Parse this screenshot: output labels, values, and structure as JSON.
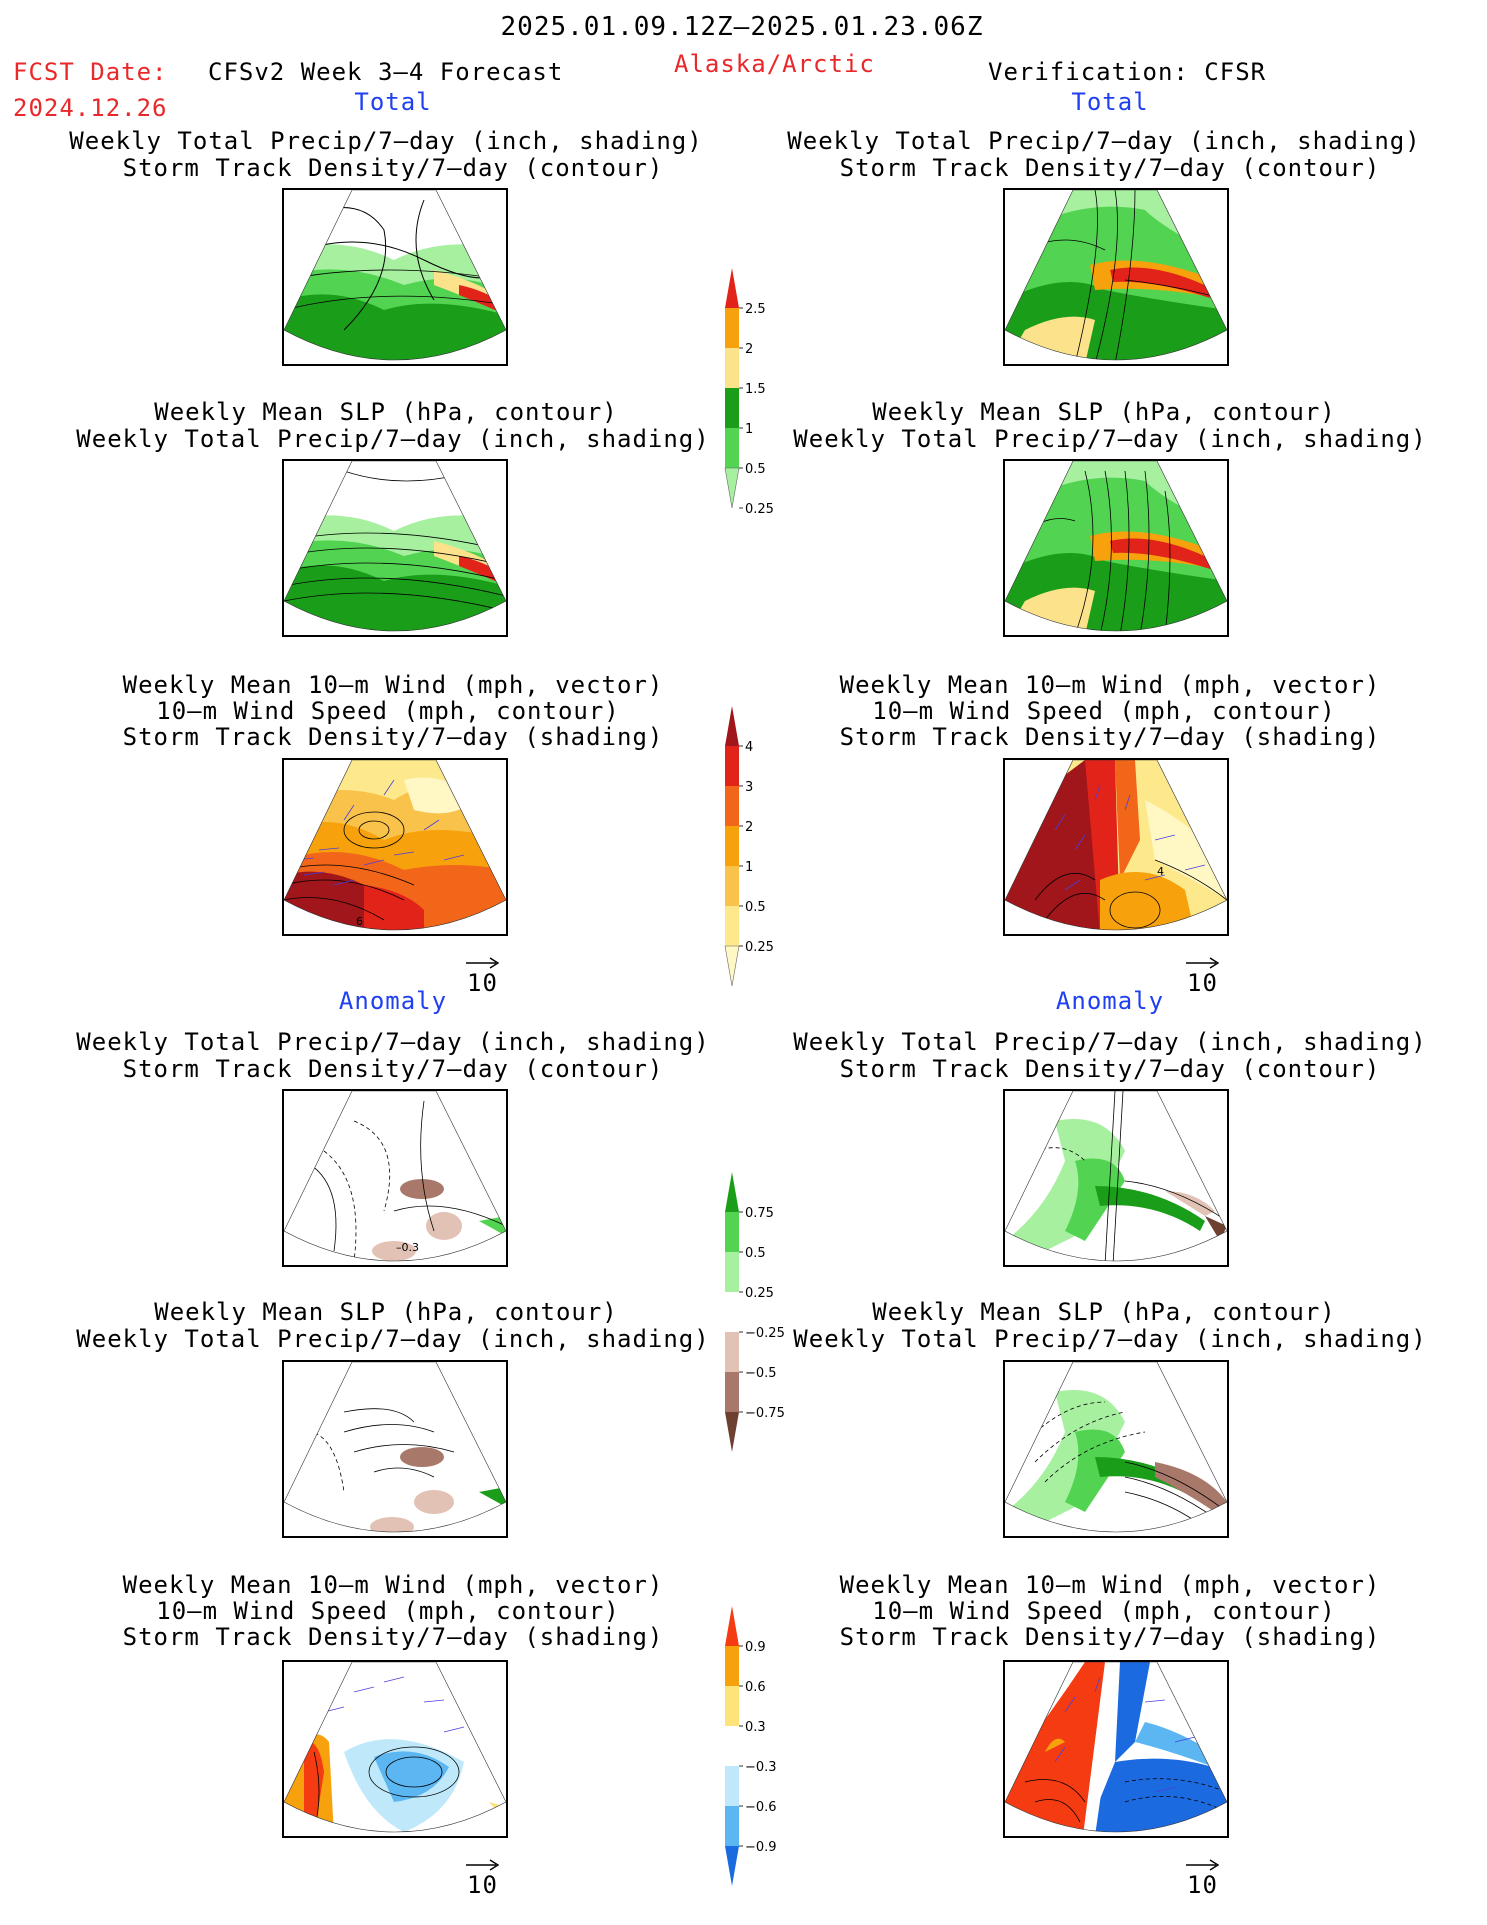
{
  "header": {
    "period": "2025.01.09.12Z–2025.01.23.06Z",
    "fcst_label": "FCST Date:",
    "fcst_date": "2024.12.26",
    "model": "CFSv2 Week 3–4 Forecast",
    "region": "Alaska/Arctic",
    "verification": "Verification: CFSR"
  },
  "sections": {
    "total": "Total",
    "anomaly": "Anomaly"
  },
  "titles": {
    "precip_std": [
      "Weekly Total Precip/7–day (inch, shading)",
      "Storm Track Density/7–day (contour)"
    ],
    "slp_precip": [
      "Weekly Mean SLP (hPa, contour)",
      "Weekly Total Precip/7–day (inch, shading)"
    ],
    "wind": [
      "Weekly Mean 10–m Wind (mph, vector)",
      "10–m Wind Speed (mph, contour)",
      "Storm Track Density/7–day (shading)"
    ]
  },
  "vector_scale": "10",
  "map_labels": {
    "total_wind_left": "6",
    "anom_precip_left": "–0.3",
    "total_wind_right": "4"
  },
  "colorbars": {
    "precip_total": {
      "labels": [
        "2.5",
        "2",
        "1.5",
        "1",
        "0.5",
        "0.25"
      ],
      "colors": [
        "#e2231a",
        "#f7a10d",
        "#fde28c",
        "#1a9e1a",
        "#52d452",
        "#a6f0a0"
      ]
    },
    "storm_total": {
      "labels": [
        "4",
        "3",
        "2",
        "1",
        "0.5",
        "0.25"
      ],
      "colors": [
        "#a0161a",
        "#e2231a",
        "#f2661a",
        "#f7a10d",
        "#f9c24a",
        "#fde98c",
        "#fff7c4"
      ]
    },
    "precip_anom": {
      "labels": [
        "0.75",
        "0.5",
        "0.25",
        "−0.25",
        "−0.5",
        "−0.75"
      ],
      "colors": [
        "#1a9e1a",
        "#52d452",
        "#a6f0a0",
        "#ffffff",
        "#e2c2b4",
        "#a8786a",
        "#6e4032"
      ]
    },
    "storm_anom": {
      "labels": [
        "0.9",
        "0.6",
        "0.3",
        "−0.3",
        "−0.6",
        "−0.9"
      ],
      "colors": [
        "#f43b12",
        "#f7a10d",
        "#fde37a",
        "#ffffff",
        "#bfe9fa",
        "#5bb6f2",
        "#1c6ae0"
      ]
    }
  }
}
